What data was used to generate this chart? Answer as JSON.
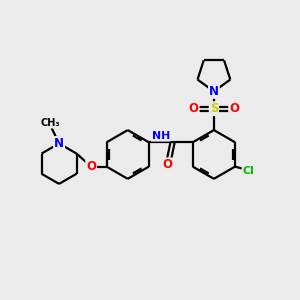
{
  "background_color": "#ebebeb",
  "bond_color": "#000000",
  "atom_colors": {
    "N": "#0000ff",
    "O": "#ff0000",
    "S": "#cccc00",
    "Cl": "#00bb00",
    "C": "#000000"
  },
  "figsize": [
    3.0,
    3.0
  ],
  "dpi": 100,
  "xlim": [
    0,
    10
  ],
  "ylim": [
    0,
    10
  ]
}
